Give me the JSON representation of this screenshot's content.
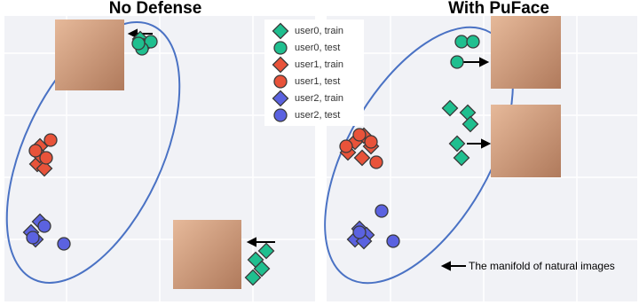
{
  "chart_data": [
    {
      "type": "scatter",
      "title": "No Defense",
      "xlim": [
        5,
        355
      ],
      "ylim": [
        0,
        322
      ],
      "series": [
        {
          "name": "user0, train",
          "color": "#1fbf8f",
          "marker": "diamond",
          "x": [
            158,
            162,
            300,
            288,
            295,
            285
          ],
          "y": [
            296,
            288,
            57,
            47,
            37,
            27
          ]
        },
        {
          "name": "user0, test",
          "color": "#1fbf8f",
          "marker": "circle",
          "x": [
            170,
            160,
            156
          ],
          "y": [
            293,
            285,
            291
          ]
        },
        {
          "name": "user1, train",
          "color": "#e8533a",
          "marker": "diamond",
          "x": [
            45,
            48,
            42,
            50,
            45
          ],
          "y": [
            175,
            160,
            155,
            150,
            165
          ]
        },
        {
          "name": "user1, test",
          "color": "#e8533a",
          "marker": "circle",
          "x": [
            57,
            40,
            52
          ],
          "y": [
            182,
            170,
            162
          ]
        },
        {
          "name": "user2, train",
          "color": "#5b62e0",
          "marker": "diamond",
          "x": [
            45,
            35,
            40
          ],
          "y": [
            90,
            78,
            70
          ]
        },
        {
          "name": "user2, test",
          "color": "#5b62e0",
          "marker": "circle",
          "x": [
            50,
            37,
            72
          ],
          "y": [
            85,
            72,
            65
          ]
        }
      ]
    },
    {
      "type": "scatter",
      "title": "With PuFace",
      "annotation": "The manifold of natural images",
      "xlim": [
        368,
        718
      ],
      "ylim": [
        0,
        322
      ],
      "series": [
        {
          "name": "user0, train",
          "color": "#1fbf8f",
          "marker": "diamond",
          "x": [
            507,
            527,
            530,
            515,
            520
          ],
          "y": [
            218,
            213,
            200,
            178,
            162
          ]
        },
        {
          "name": "user0, test",
          "color": "#1fbf8f",
          "marker": "circle",
          "x": [
            520,
            533,
            515
          ],
          "y": [
            293,
            293,
            270
          ]
        },
        {
          "name": "user1, train",
          "color": "#e8533a",
          "marker": "diamond",
          "x": [
            392,
            408,
            418,
            400,
            410
          ],
          "y": [
            168,
            162,
            175,
            180,
            187
          ]
        },
        {
          "name": "user1, test",
          "color": "#e8533a",
          "marker": "circle",
          "x": [
            405,
            418,
            424,
            390
          ],
          "y": [
            188,
            180,
            157,
            175
          ]
        },
        {
          "name": "user2, train",
          "color": "#5b62e0",
          "marker": "diamond",
          "x": [
            405,
            413,
            400,
            410
          ],
          "y": [
            82,
            75,
            70,
            68
          ]
        },
        {
          "name": "user2, test",
          "color": "#5b62e0",
          "marker": "circle",
          "x": [
            430,
            443,
            405
          ],
          "y": [
            102,
            68,
            78
          ]
        }
      ]
    }
  ]
}
